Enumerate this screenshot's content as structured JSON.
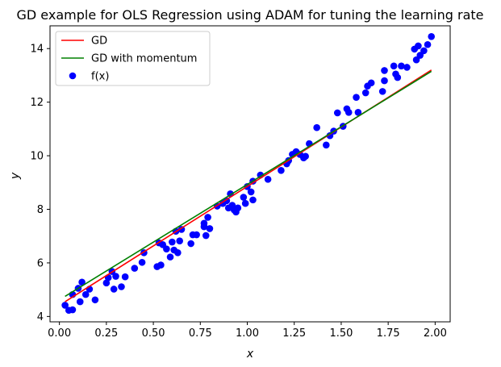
{
  "chart_data": {
    "type": "scatter",
    "title": "GD example for OLS Regression using ADAM for tuning the learning rate",
    "xlabel": "x",
    "ylabel": "y",
    "xlim": [
      -0.05,
      2.08
    ],
    "ylim": [
      3.8,
      14.85
    ],
    "x_ticks": [
      0.0,
      0.25,
      0.5,
      0.75,
      1.0,
      1.25,
      1.5,
      1.75,
      2.0
    ],
    "x_tick_labels": [
      "0.00",
      "0.25",
      "0.50",
      "0.75",
      "1.00",
      "1.25",
      "1.50",
      "1.75",
      "2.00"
    ],
    "y_ticks": [
      4,
      6,
      8,
      10,
      12,
      14
    ],
    "y_tick_labels": [
      "4",
      "6",
      "8",
      "10",
      "12",
      "14"
    ],
    "grid": false,
    "legend_position": "top-left",
    "series": [
      {
        "name": "GD",
        "kind": "line",
        "color": "#ff0000",
        "x": [
          0.03,
          1.98
        ],
        "y": [
          4.55,
          13.2
        ]
      },
      {
        "name": "GD with momentum",
        "kind": "line",
        "color": "#008000",
        "x": [
          0.03,
          1.98
        ],
        "y": [
          4.75,
          13.15
        ]
      },
      {
        "name": "f(x)",
        "kind": "scatter",
        "color": "#0000ff",
        "points": [
          [
            0.03,
            4.42
          ],
          [
            0.05,
            4.23
          ],
          [
            0.07,
            4.25
          ],
          [
            0.07,
            4.82
          ],
          [
            0.1,
            5.05
          ],
          [
            0.11,
            4.55
          ],
          [
            0.12,
            5.28
          ],
          [
            0.14,
            4.82
          ],
          [
            0.16,
            5.02
          ],
          [
            0.19,
            4.62
          ],
          [
            0.25,
            5.25
          ],
          [
            0.26,
            5.45
          ],
          [
            0.28,
            5.68
          ],
          [
            0.29,
            5.02
          ],
          [
            0.3,
            5.5
          ],
          [
            0.33,
            5.11
          ],
          [
            0.35,
            5.48
          ],
          [
            0.4,
            5.8
          ],
          [
            0.44,
            6.02
          ],
          [
            0.45,
            6.38
          ],
          [
            0.52,
            5.86
          ],
          [
            0.53,
            6.75
          ],
          [
            0.54,
            5.92
          ],
          [
            0.55,
            6.68
          ],
          [
            0.57,
            6.52
          ],
          [
            0.59,
            6.22
          ],
          [
            0.6,
            6.78
          ],
          [
            0.61,
            6.48
          ],
          [
            0.62,
            7.18
          ],
          [
            0.63,
            6.38
          ],
          [
            0.64,
            6.82
          ],
          [
            0.65,
            7.25
          ],
          [
            0.7,
            6.72
          ],
          [
            0.71,
            7.05
          ],
          [
            0.73,
            7.05
          ],
          [
            0.77,
            7.35
          ],
          [
            0.77,
            7.48
          ],
          [
            0.78,
            7.02
          ],
          [
            0.79,
            7.7
          ],
          [
            0.8,
            7.28
          ],
          [
            0.84,
            8.12
          ],
          [
            0.87,
            8.22
          ],
          [
            0.89,
            8.32
          ],
          [
            0.9,
            8.05
          ],
          [
            0.91,
            8.58
          ],
          [
            0.92,
            8.15
          ],
          [
            0.93,
            7.98
          ],
          [
            0.94,
            7.9
          ],
          [
            0.95,
            8.05
          ],
          [
            0.98,
            8.45
          ],
          [
            0.99,
            8.22
          ],
          [
            1.0,
            8.85
          ],
          [
            1.02,
            8.65
          ],
          [
            1.03,
            9.05
          ],
          [
            1.03,
            8.35
          ],
          [
            1.07,
            9.28
          ],
          [
            1.11,
            9.12
          ],
          [
            1.18,
            9.45
          ],
          [
            1.21,
            9.7
          ],
          [
            1.22,
            9.82
          ],
          [
            1.24,
            10.05
          ],
          [
            1.26,
            10.15
          ],
          [
            1.28,
            10.05
          ],
          [
            1.3,
            9.92
          ],
          [
            1.31,
            9.98
          ],
          [
            1.33,
            10.45
          ],
          [
            1.37,
            11.05
          ],
          [
            1.42,
            10.4
          ],
          [
            1.44,
            10.75
          ],
          [
            1.46,
            10.92
          ],
          [
            1.48,
            11.6
          ],
          [
            1.51,
            11.1
          ],
          [
            1.53,
            11.75
          ],
          [
            1.54,
            11.62
          ],
          [
            1.58,
            12.18
          ],
          [
            1.59,
            11.62
          ],
          [
            1.63,
            12.35
          ],
          [
            1.64,
            12.6
          ],
          [
            1.66,
            12.72
          ],
          [
            1.72,
            12.4
          ],
          [
            1.73,
            12.8
          ],
          [
            1.73,
            13.18
          ],
          [
            1.78,
            13.35
          ],
          [
            1.79,
            13.05
          ],
          [
            1.8,
            12.92
          ],
          [
            1.82,
            13.35
          ],
          [
            1.85,
            13.3
          ],
          [
            1.89,
            13.98
          ],
          [
            1.9,
            13.58
          ],
          [
            1.91,
            14.1
          ],
          [
            1.92,
            13.75
          ],
          [
            1.94,
            13.92
          ],
          [
            1.96,
            14.15
          ],
          [
            1.98,
            14.45
          ]
        ]
      }
    ]
  }
}
